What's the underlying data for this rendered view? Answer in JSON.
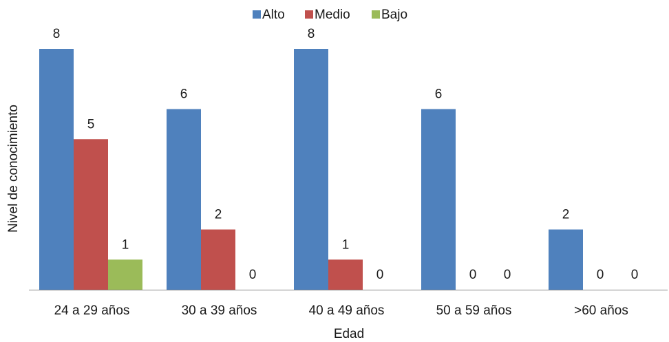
{
  "chart_data": {
    "type": "bar",
    "categories": [
      "24 a 29 años",
      "30 a 39 años",
      "40 a 49 años",
      "50 a 59 años",
      ">60 años"
    ],
    "series": [
      {
        "name": "Alto",
        "values": [
          8,
          6,
          8,
          6,
          2
        ],
        "color": "#4f81bd"
      },
      {
        "name": "Medio",
        "values": [
          5,
          2,
          1,
          0,
          0
        ],
        "color": "#c0504d"
      },
      {
        "name": "Bajo",
        "values": [
          1,
          0,
          0,
          0,
          0
        ],
        "color": "#9bbb59"
      }
    ],
    "xlabel": "Edad",
    "ylabel": "Nivel de conocimiento",
    "ylim": [
      0,
      8
    ],
    "grid": false,
    "legend_position": "top-center",
    "data_labels": true
  }
}
